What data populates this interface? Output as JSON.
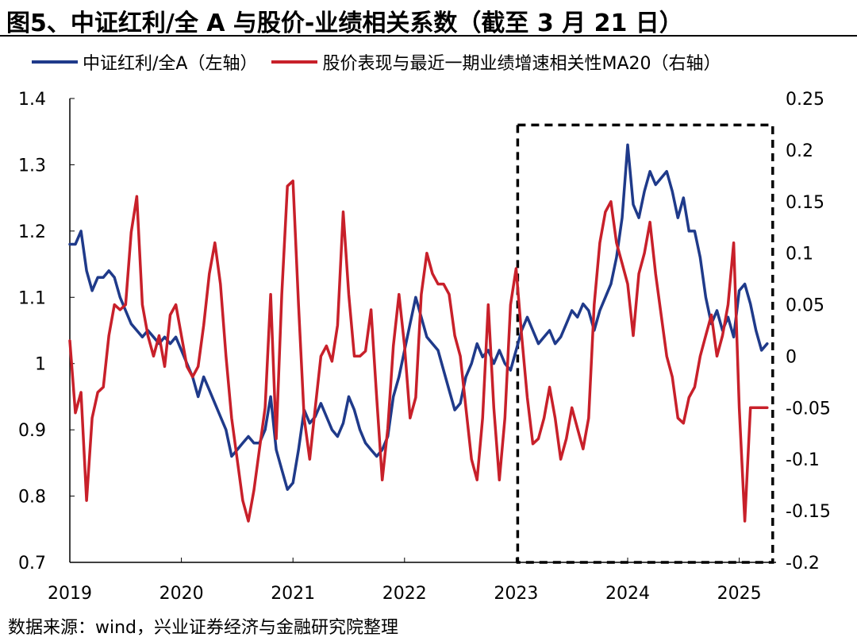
{
  "title": "图5、中证红利/全 A 与股价-业绩相关系数（截至 3 月 21 日）",
  "source": "数据来源：wind，兴业证券经济与金融研究院整理",
  "chart_data": {
    "type": "line",
    "title": "图5、中证红利/全 A 与股价-业绩相关系数（截至 3 月 21 日）",
    "x_ticks": [
      "2019",
      "2020",
      "2021",
      "2022",
      "2023",
      "2024",
      "2025"
    ],
    "x_range": [
      2019.0,
      2025.33
    ],
    "y_left": {
      "ticks": [
        "1.4",
        "1.3",
        "1.2",
        "1.1",
        "1",
        "0.9",
        "0.8",
        "0.7"
      ],
      "range": [
        0.7,
        1.4
      ]
    },
    "y_right": {
      "ticks": [
        "0.25",
        "0.2",
        "0.15",
        "0.1",
        "0.05",
        "0",
        "-0.05",
        "-0.1",
        "-0.15",
        "-0.2"
      ],
      "range": [
        -0.2,
        0.25
      ]
    },
    "highlight_box": {
      "x_range": [
        2023.0,
        2025.3
      ],
      "y_left_range": [
        0.7,
        1.36
      ],
      "style": "dashed"
    },
    "series": [
      {
        "name": "中证红利/全A（左轴）",
        "axis": "left",
        "color": "#1f3a8a",
        "x": [
          2019.0,
          2019.05,
          2019.1,
          2019.15,
          2019.2,
          2019.25,
          2019.3,
          2019.35,
          2019.4,
          2019.45,
          2019.5,
          2019.55,
          2019.6,
          2019.65,
          2019.7,
          2019.75,
          2019.8,
          2019.85,
          2019.9,
          2019.95,
          2020.0,
          2020.05,
          2020.1,
          2020.15,
          2020.2,
          2020.25,
          2020.3,
          2020.35,
          2020.4,
          2020.45,
          2020.5,
          2020.55,
          2020.6,
          2020.65,
          2020.7,
          2020.75,
          2020.8,
          2020.85,
          2020.9,
          2020.95,
          2021.0,
          2021.05,
          2021.1,
          2021.15,
          2021.2,
          2021.25,
          2021.3,
          2021.35,
          2021.4,
          2021.45,
          2021.5,
          2021.55,
          2021.6,
          2021.65,
          2021.7,
          2021.75,
          2021.8,
          2021.85,
          2021.9,
          2021.95,
          2022.0,
          2022.05,
          2022.1,
          2022.15,
          2022.2,
          2022.25,
          2022.3,
          2022.35,
          2022.4,
          2022.45,
          2022.5,
          2022.55,
          2022.6,
          2022.65,
          2022.7,
          2022.75,
          2022.8,
          2022.85,
          2022.9,
          2022.95,
          2023.0,
          2023.05,
          2023.1,
          2023.15,
          2023.2,
          2023.25,
          2023.3,
          2023.35,
          2023.4,
          2023.45,
          2023.5,
          2023.55,
          2023.6,
          2023.65,
          2023.7,
          2023.75,
          2023.8,
          2023.85,
          2023.9,
          2023.95,
          2024.0,
          2024.05,
          2024.1,
          2024.15,
          2024.2,
          2024.25,
          2024.3,
          2024.35,
          2024.4,
          2024.45,
          2024.5,
          2024.55,
          2024.6,
          2024.65,
          2024.7,
          2024.75,
          2024.8,
          2024.85,
          2024.9,
          2024.95,
          2025.0,
          2025.05,
          2025.1,
          2025.15,
          2025.2,
          2025.25
        ],
        "values": [
          1.18,
          1.18,
          1.2,
          1.14,
          1.11,
          1.13,
          1.13,
          1.14,
          1.13,
          1.1,
          1.08,
          1.06,
          1.05,
          1.04,
          1.05,
          1.04,
          1.03,
          1.04,
          1.03,
          1.04,
          1.02,
          1.0,
          0.98,
          0.95,
          0.98,
          0.96,
          0.94,
          0.92,
          0.9,
          0.86,
          0.87,
          0.88,
          0.89,
          0.88,
          0.88,
          0.9,
          0.95,
          0.87,
          0.84,
          0.81,
          0.82,
          0.87,
          0.93,
          0.91,
          0.92,
          0.94,
          0.92,
          0.9,
          0.89,
          0.91,
          0.95,
          0.93,
          0.9,
          0.88,
          0.87,
          0.86,
          0.87,
          0.89,
          0.95,
          0.98,
          1.02,
          1.06,
          1.1,
          1.07,
          1.04,
          1.03,
          1.02,
          0.99,
          0.96,
          0.93,
          0.94,
          0.98,
          1.0,
          1.03,
          1.01,
          1.02,
          1.0,
          1.02,
          1.0,
          0.99,
          1.02,
          1.05,
          1.07,
          1.05,
          1.03,
          1.04,
          1.05,
          1.03,
          1.04,
          1.06,
          1.08,
          1.07,
          1.09,
          1.08,
          1.05,
          1.08,
          1.1,
          1.12,
          1.16,
          1.22,
          1.33,
          1.24,
          1.22,
          1.26,
          1.29,
          1.27,
          1.28,
          1.29,
          1.26,
          1.22,
          1.25,
          1.2,
          1.2,
          1.16,
          1.1,
          1.06,
          1.08,
          1.05,
          1.07,
          1.04,
          1.11,
          1.12,
          1.09,
          1.05,
          1.02,
          1.03
        ]
      },
      {
        "name": "股价表现与最近一期业绩增速相关性MA20（右轴）",
        "axis": "right",
        "color": "#c8202a",
        "x": [
          2019.0,
          2019.05,
          2019.1,
          2019.15,
          2019.2,
          2019.25,
          2019.3,
          2019.35,
          2019.4,
          2019.45,
          2019.5,
          2019.55,
          2019.6,
          2019.65,
          2019.7,
          2019.75,
          2019.8,
          2019.85,
          2019.9,
          2019.95,
          2020.0,
          2020.05,
          2020.1,
          2020.15,
          2020.2,
          2020.25,
          2020.3,
          2020.35,
          2020.4,
          2020.45,
          2020.5,
          2020.55,
          2020.6,
          2020.65,
          2020.7,
          2020.75,
          2020.8,
          2020.85,
          2020.9,
          2020.95,
          2021.0,
          2021.05,
          2021.1,
          2021.15,
          2021.2,
          2021.25,
          2021.3,
          2021.35,
          2021.4,
          2021.45,
          2021.5,
          2021.55,
          2021.6,
          2021.65,
          2021.7,
          2021.75,
          2021.8,
          2021.85,
          2021.9,
          2021.95,
          2022.0,
          2022.05,
          2022.1,
          2022.15,
          2022.2,
          2022.25,
          2022.3,
          2022.35,
          2022.4,
          2022.45,
          2022.5,
          2022.55,
          2022.6,
          2022.65,
          2022.7,
          2022.75,
          2022.8,
          2022.85,
          2022.9,
          2022.95,
          2023.0,
          2023.05,
          2023.1,
          2023.15,
          2023.2,
          2023.25,
          2023.3,
          2023.35,
          2023.4,
          2023.45,
          2023.5,
          2023.55,
          2023.6,
          2023.65,
          2023.7,
          2023.75,
          2023.8,
          2023.85,
          2023.9,
          2023.95,
          2024.0,
          2024.05,
          2024.1,
          2024.15,
          2024.2,
          2024.25,
          2024.3,
          2024.35,
          2024.4,
          2024.45,
          2024.5,
          2024.55,
          2024.6,
          2024.65,
          2024.7,
          2024.75,
          2024.8,
          2024.85,
          2024.9,
          2024.95,
          2025.0,
          2025.05,
          2025.1,
          2025.15,
          2025.2,
          2025.25
        ],
        "values": [
          0.015,
          -0.055,
          -0.035,
          -0.14,
          -0.06,
          -0.035,
          -0.03,
          0.02,
          0.05,
          0.045,
          0.05,
          0.12,
          0.155,
          0.05,
          0.02,
          0.0,
          0.02,
          -0.01,
          0.04,
          0.05,
          0.02,
          -0.01,
          -0.02,
          -0.01,
          0.03,
          0.08,
          0.11,
          0.07,
          0.0,
          -0.06,
          -0.1,
          -0.14,
          -0.16,
          -0.13,
          -0.09,
          -0.05,
          0.06,
          -0.08,
          0.06,
          0.165,
          0.17,
          0.05,
          -0.06,
          -0.1,
          -0.05,
          0.0,
          0.01,
          -0.005,
          0.03,
          0.14,
          0.06,
          0.0,
          0.0,
          0.005,
          0.045,
          -0.04,
          -0.12,
          -0.07,
          0.01,
          0.06,
          0.01,
          -0.06,
          -0.04,
          0.06,
          0.1,
          0.08,
          0.07,
          0.07,
          0.06,
          0.02,
          0.0,
          -0.05,
          -0.1,
          -0.12,
          -0.06,
          0.05,
          -0.05,
          -0.12,
          -0.06,
          0.05,
          0.085,
          0.02,
          -0.04,
          -0.085,
          -0.08,
          -0.06,
          -0.03,
          -0.06,
          -0.1,
          -0.08,
          -0.05,
          -0.07,
          -0.09,
          -0.06,
          0.05,
          0.11,
          0.14,
          0.15,
          0.11,
          0.09,
          0.07,
          0.02,
          0.08,
          0.1,
          0.13,
          0.08,
          0.04,
          0.0,
          -0.02,
          -0.06,
          -0.065,
          -0.04,
          -0.03,
          0.0,
          0.02,
          0.04,
          0.0,
          0.02,
          0.05,
          0.11,
          -0.05,
          -0.16,
          -0.05,
          -0.05,
          -0.05,
          -0.05
        ]
      }
    ]
  }
}
